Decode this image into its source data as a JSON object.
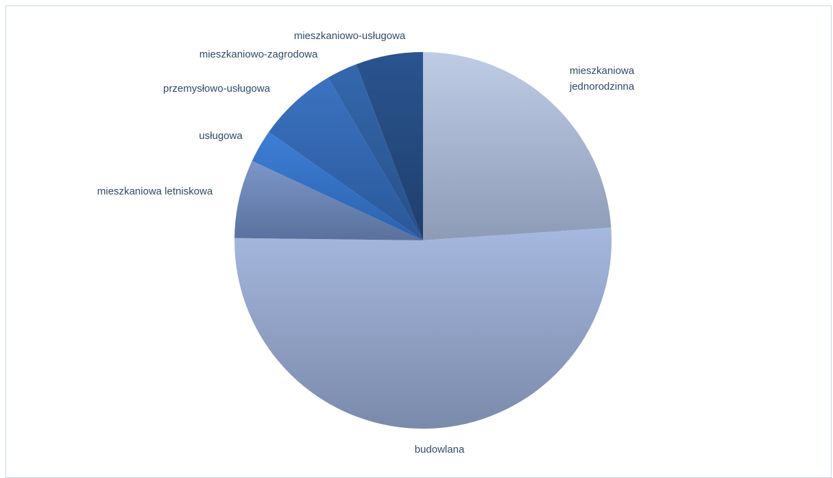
{
  "chart_data": {
    "type": "pie",
    "title": "",
    "slices": [
      {
        "label": "mieszkaniowa\njednorodzinna",
        "value": 24.5,
        "color_top": "#bfcce6",
        "color_bottom": "#8e9bb6"
      },
      {
        "label": "budowlana",
        "value": 52.5,
        "color_top": "#a6b8de",
        "color_bottom": "#7a8aab"
      },
      {
        "label": "mieszkaniowa letniskowa",
        "value": 6.9,
        "color_top": "#7c96c9",
        "color_bottom": "#5a719c"
      },
      {
        "label": "usługowa",
        "value": 2.9,
        "color_top": "#3d7fd6",
        "color_bottom": "#2c62ad"
      },
      {
        "label": "przemysłowo-usługowa",
        "value": 7.0,
        "color_top": "#3b73c2",
        "color_bottom": "#2a5798"
      },
      {
        "label": "mieszkaniowo-zagrodowa",
        "value": 2.7,
        "color_top": "#3468ae",
        "color_bottom": "#284f86"
      },
      {
        "label": "mieszkaniowo-usługowa",
        "value": 5.9,
        "color_top": "#2a5490",
        "color_bottom": "#1f3f6c"
      }
    ]
  }
}
